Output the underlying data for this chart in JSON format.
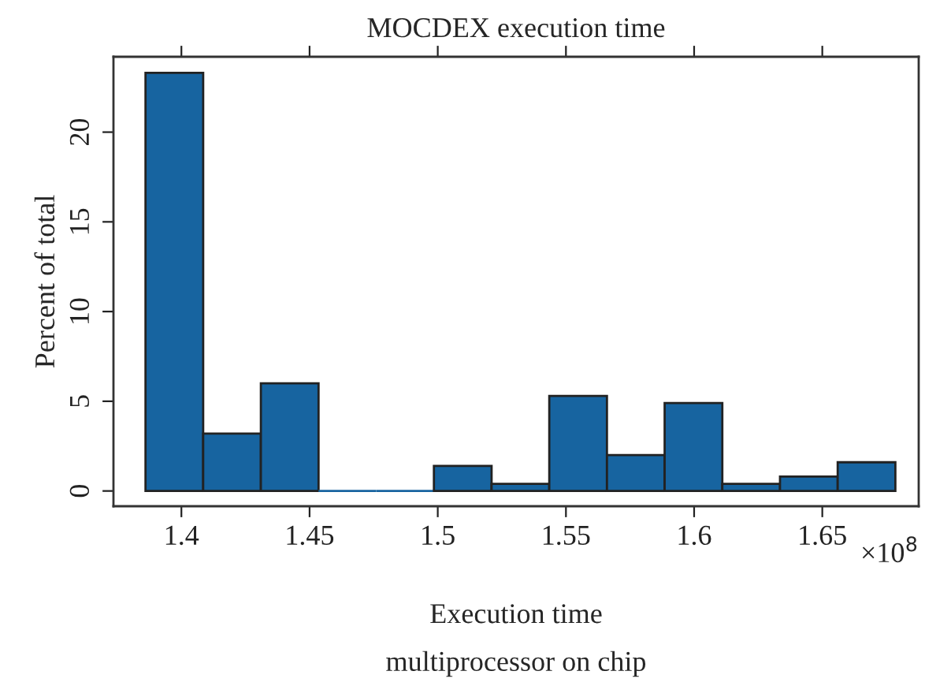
{
  "chart_data": {
    "type": "histogram",
    "title": "MOCDEX execution time",
    "xlabel": "Execution time",
    "ylabel": "Percent of total",
    "annotations": [
      "×10$^{8}$",
      "multiprocessor on chip"
    ],
    "bins": [
      1.386,
      1.4085,
      1.431,
      1.4535,
      1.476,
      1.4985,
      1.521,
      1.5435,
      1.566,
      1.5885,
      1.611,
      1.6335,
      1.656,
      1.6785
    ],
    "values": [
      23.3,
      3.2,
      6.0,
      0,
      0,
      1.4,
      0.4,
      5.3,
      2.0,
      4.9,
      0.4,
      0.8,
      1.6
    ],
    "color": "#1764a0",
    "xlim": [
      1.3735,
      1.6876
    ],
    "xticks": [
      1.4,
      1.45,
      1.5,
      1.55,
      1.6,
      1.65
    ],
    "ylim": [
      -0.85,
      24.2
    ],
    "yticks": [
      0,
      5,
      10,
      15,
      20
    ],
    "grid": false,
    "legend": false
  }
}
